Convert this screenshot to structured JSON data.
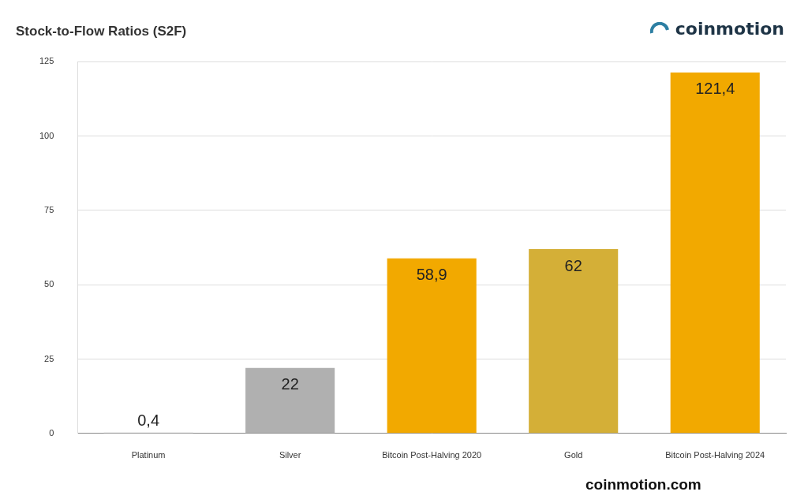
{
  "chart_data": {
    "type": "bar",
    "title": "Stock-to-Flow Ratios (S2F)",
    "categories": [
      "Platinum",
      "Silver",
      "Bitcoin Post-Halving 2020",
      "Gold",
      "Bitcoin Post-Halving 2024"
    ],
    "values": [
      0.4,
      22,
      58.9,
      62,
      121.4
    ],
    "value_labels": [
      "0,4",
      "22",
      "58,9",
      "62",
      "121,4"
    ],
    "colors": [
      "#ebebeb",
      "#b0b0b0",
      "#f2a900",
      "#d4af37",
      "#f2a900"
    ],
    "ylim": [
      0,
      125
    ],
    "yticks": [
      0,
      25,
      50,
      75,
      100,
      125
    ],
    "grid": true,
    "data_labels": true,
    "annotations": [
      "coinmotion",
      "coinmotion.com"
    ]
  }
}
